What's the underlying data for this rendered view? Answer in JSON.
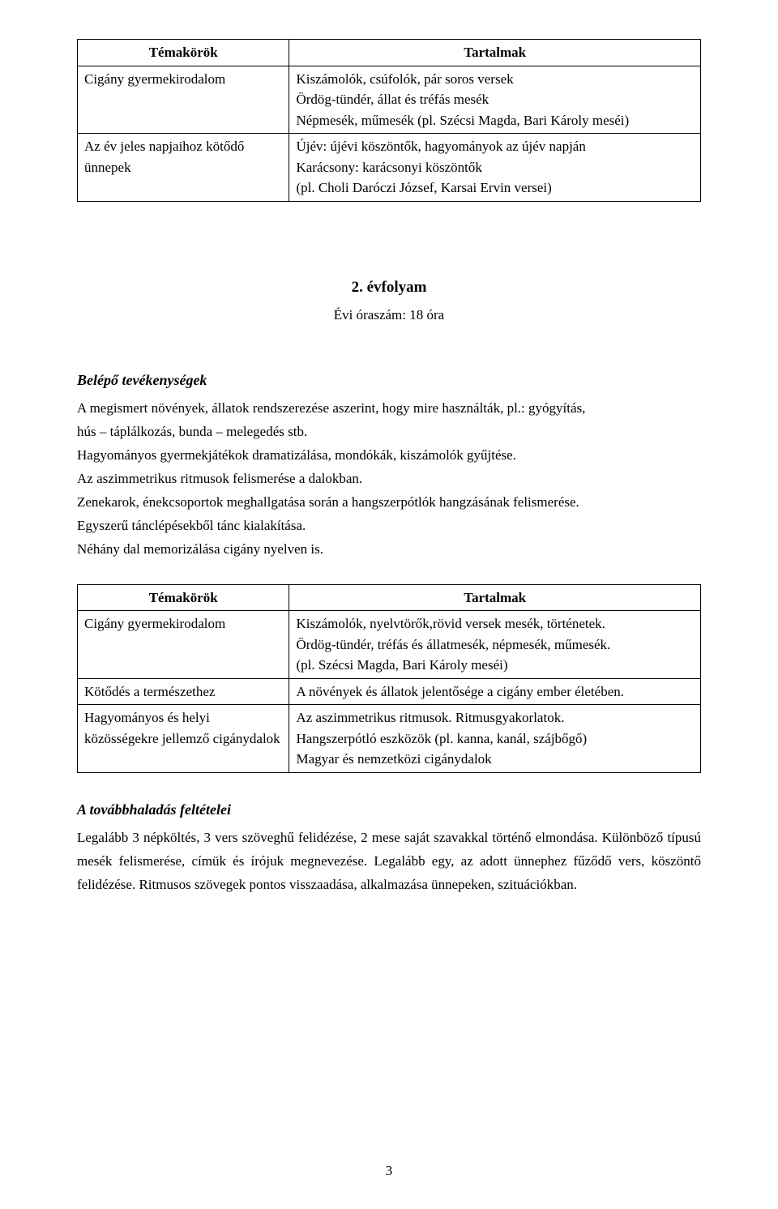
{
  "table1": {
    "headers": [
      "Témakörök",
      "Tartalmak"
    ],
    "rows": [
      {
        "left": "Cigány gyermekirodalom",
        "right": "Kiszámolók, csúfolók, pár soros versek\nÖrdög-tündér, állat és tréfás mesék\nNépmesék, műmesék (pl. Szécsi Magda, Bari Károly meséi)"
      },
      {
        "left": "Az év jeles napjaihoz kötődő ünnepek",
        "right": "Újév: újévi köszöntők, hagyományok az újév napján\nKarácsony: karácsonyi köszöntők\n(pl. Choli Daróczi József, Karsai Ervin versei)"
      }
    ]
  },
  "grade": "2. évfolyam",
  "hours": "Évi óraszám:  18 óra",
  "section1_heading": "Belépő tevékenységek",
  "section1_lines": [
    "A megismert növények, állatok rendszerezése aszerint, hogy mire használták, pl.: gyógyítás,",
    "hús – táplálkozás, bunda – melegedés stb.",
    "Hagyományos gyermekjátékok dramatizálása, mondókák, kiszámolók gyűjtése.",
    "Az aszimmetrikus ritmusok felismerése a dalokban.",
    "Zenekarok, énekcsoportok meghallgatása során a hangszerpótlók hangzásának felismerése.",
    "Egyszerű tánclépésekből tánc kialakítása.",
    "Néhány dal memorizálása cigány nyelven is."
  ],
  "table2": {
    "headers": [
      "Témakörök",
      "Tartalmak"
    ],
    "rows": [
      {
        "left": "Cigány gyermekirodalom",
        "right": "Kiszámolók, nyelvtörők,rövid versek mesék, történetek.\nÖrdög-tündér, tréfás és állatmesék, népmesék, műmesék.\n(pl. Szécsi Magda, Bari Károly meséi)"
      },
      {
        "left": "Kötődés a természethez",
        "right": "A növények és állatok jelentősége a cigány ember életében."
      },
      {
        "left": "Hagyományos és helyi közösségekre jellemző cigánydalok",
        "right": "Az aszimmetrikus ritmusok. Ritmusgyakorlatok.\nHangszerpótló eszközök (pl. kanna, kanál, szájbőgő)\nMagyar és nemzetközi cigánydalok"
      }
    ]
  },
  "section2_heading": "A továbbhaladás feltételei",
  "section2_text": "Legalább 3 népköltés, 3 vers szöveghű felidézése, 2 mese saját szavakkal történő elmondása. Különböző típusú mesék felismerése, címük és írójuk megnevezése. Legalább egy, az adott ünnephez fűződő vers, köszöntő felidézése. Ritmusos szövegek pontos visszaadása, alkalmazása ünnepeken, szituációkban.",
  "page_number": "3"
}
